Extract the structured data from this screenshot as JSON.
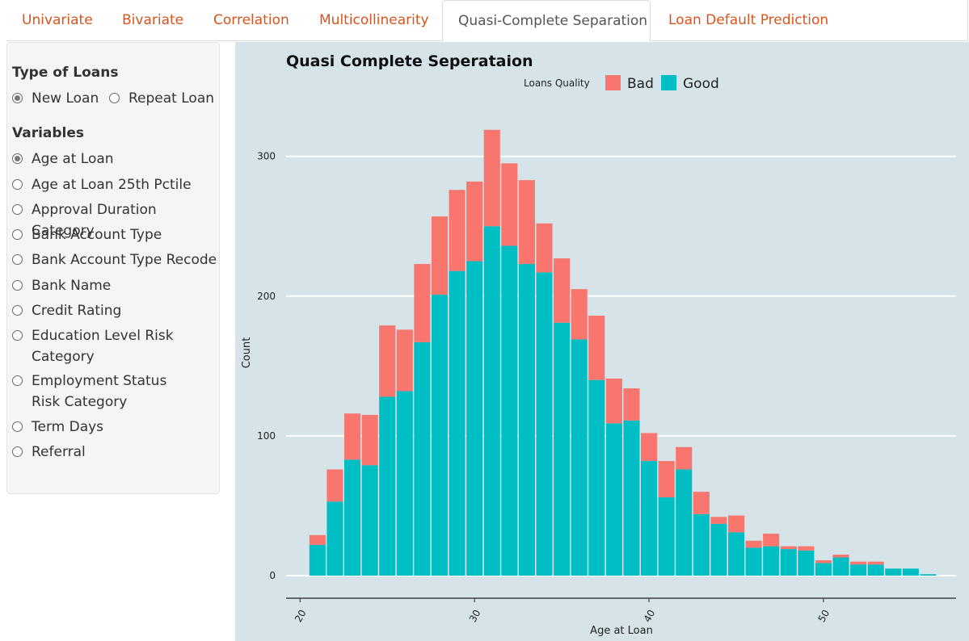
{
  "tabs": [
    {
      "label": "Univariate",
      "active": false
    },
    {
      "label": "Bivariate",
      "active": false
    },
    {
      "label": "Correlation",
      "active": false
    },
    {
      "label": "Multicollinearity",
      "active": false
    },
    {
      "label": "Quasi-Complete Separation",
      "active": true
    },
    {
      "label": "Loan Default Prediction",
      "active": false
    }
  ],
  "sidebar": {
    "loan_type": {
      "label": "Type of Loans",
      "options": [
        {
          "label": "New Loan",
          "checked": true
        },
        {
          "label": "Repeat Loan",
          "checked": false
        }
      ]
    },
    "variables": {
      "label": "Variables",
      "options": [
        {
          "label": "Age at Loan",
          "checked": true
        },
        {
          "label": "Age at Loan 25th Pctile",
          "checked": false
        },
        {
          "label": "Approval Duration Category",
          "checked": false
        },
        {
          "label": "Bank Account Type",
          "checked": false
        },
        {
          "label": "Bank Account Type Recode",
          "checked": false
        },
        {
          "label": "Bank Name",
          "checked": false
        },
        {
          "label": "Credit Rating",
          "checked": false
        },
        {
          "label": "Education Level Risk Category",
          "checked": false
        },
        {
          "label": "Employment Status Risk Category",
          "checked": false
        },
        {
          "label": "Term Days",
          "checked": false
        },
        {
          "label": "Referral",
          "checked": false
        }
      ]
    }
  },
  "colors": {
    "bad": "#f8766d",
    "good": "#00bfc4",
    "panel_bg": "#d6e4ea",
    "tab_text": "#d9541e"
  },
  "chart_data": {
    "type": "bar",
    "stacked": true,
    "title": "Quasi Complete Seperataion",
    "xlabel": "Age at Loan",
    "ylabel": "Count",
    "legend_title": "Loans Quality",
    "legend_position": "top",
    "x_ticks": [
      20,
      30,
      40,
      50
    ],
    "y_ticks": [
      0,
      100,
      200,
      300
    ],
    "xlim": [
      19.2,
      57.6
    ],
    "ylim": [
      0,
      330
    ],
    "bin_width": 1,
    "x": [
      21,
      22,
      23,
      24,
      25,
      26,
      27,
      28,
      29,
      30,
      31,
      32,
      33,
      34,
      35,
      36,
      37,
      38,
      39,
      40,
      41,
      42,
      43,
      44,
      45,
      46,
      47,
      48,
      49,
      50,
      51,
      52,
      53,
      54,
      55,
      56
    ],
    "series": [
      {
        "name": "Good",
        "color": "#00bfc4",
        "values": [
          22,
          53,
          83,
          79,
          128,
          132,
          167,
          201,
          218,
          225,
          250,
          236,
          223,
          217,
          181,
          169,
          140,
          109,
          111,
          82,
          56,
          76,
          44,
          37,
          31,
          20,
          21,
          19,
          18,
          9,
          13,
          8,
          8,
          5,
          5,
          1
        ]
      },
      {
        "name": "Bad",
        "color": "#f8766d",
        "values": [
          7,
          23,
          33,
          36,
          51,
          44,
          56,
          56,
          58,
          57,
          69,
          59,
          60,
          35,
          46,
          36,
          46,
          32,
          23,
          20,
          26,
          16,
          16,
          5,
          12,
          5,
          9,
          2,
          3,
          2,
          2,
          2,
          2,
          0,
          0,
          0
        ]
      }
    ]
  }
}
